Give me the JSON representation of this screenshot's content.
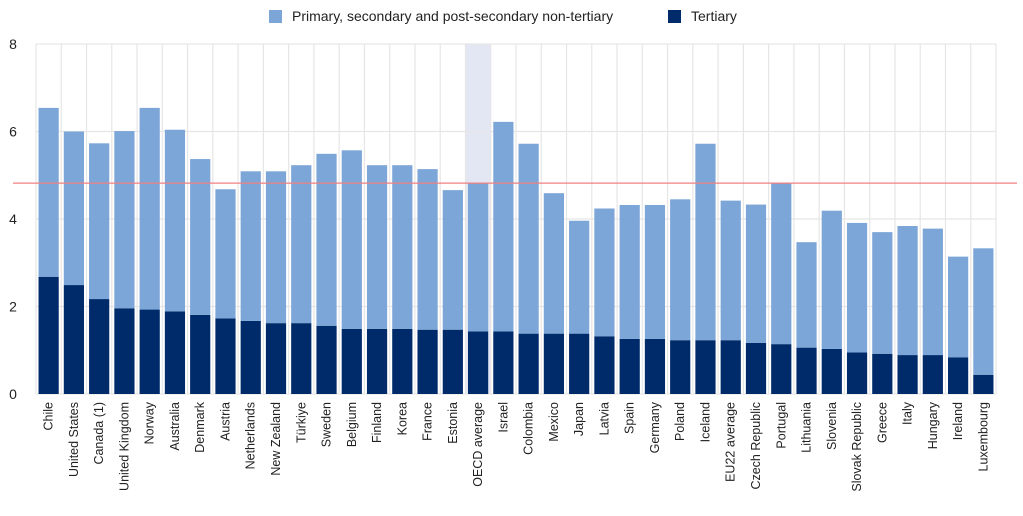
{
  "chart_data": {
    "type": "bar",
    "stacked": true,
    "title": "",
    "xlabel": "",
    "ylabel": "",
    "ylim": [
      0,
      8
    ],
    "yticks": [
      "0",
      "2",
      "4",
      "6",
      "8"
    ],
    "grid": true,
    "legend_position": "top-center",
    "highlighted_category": "OECD average",
    "reference_line": {
      "value": 4.82,
      "color": "#f08080"
    },
    "categories": [
      "Chile",
      "United States",
      "Canada (1)",
      "United Kingdom",
      "Norway",
      "Australia",
      "Denmark",
      "Austria",
      "Netherlands",
      "New Zealand",
      "Türkiye",
      "Sweden",
      "Belgium",
      "Finland",
      "Korea",
      "France",
      "Estonia",
      "OECD average",
      "Israel",
      "Colombia",
      "Mexico",
      "Japan",
      "Latvia",
      "Spain",
      "Germany",
      "Poland",
      "Iceland",
      "EU22 average",
      "Czech Republic",
      "Portugal",
      "Lithuania",
      "Slovenia",
      "Slovak Republic",
      "Greece",
      "Italy",
      "Hungary",
      "Ireland",
      "Luxembourg"
    ],
    "series": [
      {
        "name": "Tertiary",
        "color": "#002b6a",
        "values": [
          2.68,
          2.49,
          2.17,
          1.96,
          1.93,
          1.89,
          1.81,
          1.73,
          1.67,
          1.62,
          1.62,
          1.56,
          1.49,
          1.49,
          1.49,
          1.47,
          1.47,
          1.43,
          1.43,
          1.38,
          1.38,
          1.38,
          1.32,
          1.26,
          1.26,
          1.23,
          1.23,
          1.23,
          1.17,
          1.14,
          1.06,
          1.03,
          0.95,
          0.92,
          0.89,
          0.89,
          0.84,
          0.44
        ]
      },
      {
        "name": "Primary, secondary and post-secondary non-tertiary",
        "color": "#7ca6d8",
        "values": [
          3.86,
          3.51,
          3.56,
          4.05,
          4.61,
          4.15,
          3.56,
          2.95,
          3.42,
          3.47,
          3.61,
          3.93,
          4.08,
          3.74,
          3.74,
          3.67,
          3.19,
          3.4,
          4.79,
          4.34,
          3.21,
          2.58,
          2.92,
          3.06,
          3.06,
          3.22,
          4.49,
          3.19,
          3.16,
          3.69,
          2.41,
          3.16,
          2.96,
          2.78,
          2.95,
          2.89,
          2.3,
          2.89
        ]
      }
    ]
  },
  "legend": [
    {
      "label": "Primary, secondary and post-secondary non-tertiary",
      "color": "#7ca6d8"
    },
    {
      "label": "Tertiary",
      "color": "#002b6a"
    }
  ],
  "colors": {
    "grid": "#e6e6e6",
    "highlight": "#e3e7f3"
  }
}
